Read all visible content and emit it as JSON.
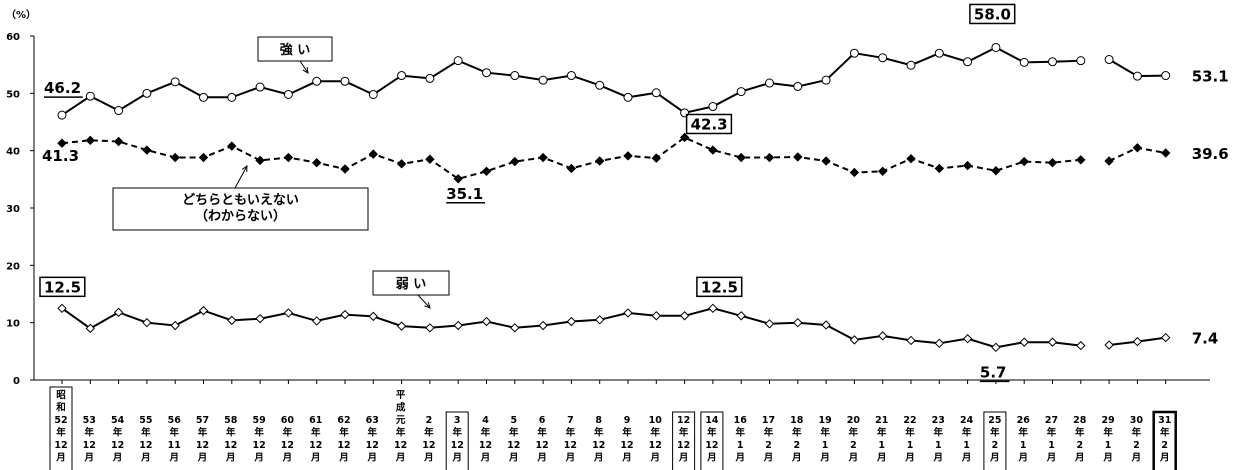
{
  "chart_data": {
    "type": "line",
    "yunit": "（%）",
    "ylim": [
      0,
      60
    ],
    "yticks": [
      "60",
      "50",
      "40",
      "30",
      "20",
      "10",
      "0"
    ],
    "categories": [
      [
        "昭",
        "和",
        "52",
        "年",
        "12",
        "月"
      ],
      [
        "53",
        "年",
        "12",
        "月"
      ],
      [
        "54",
        "年",
        "12",
        "月"
      ],
      [
        "55",
        "年",
        "12",
        "月"
      ],
      [
        "56",
        "年",
        "11",
        "月"
      ],
      [
        "57",
        "年",
        "12",
        "月"
      ],
      [
        "58",
        "年",
        "12",
        "月"
      ],
      [
        "59",
        "年",
        "12",
        "月"
      ],
      [
        "60",
        "年",
        "12",
        "月"
      ],
      [
        "61",
        "年",
        "12",
        "月"
      ],
      [
        "62",
        "年",
        "12",
        "月"
      ],
      [
        "63",
        "年",
        "12",
        "月"
      ],
      [
        "平",
        "成",
        "元",
        "年",
        "12",
        "月"
      ],
      [
        "2",
        "年",
        "12",
        "月"
      ],
      [
        "3",
        "年",
        "12",
        "月"
      ],
      [
        "4",
        "年",
        "12",
        "月"
      ],
      [
        "5",
        "年",
        "12",
        "月"
      ],
      [
        "6",
        "年",
        "12",
        "月"
      ],
      [
        "7",
        "年",
        "12",
        "月"
      ],
      [
        "8",
        "年",
        "12",
        "月"
      ],
      [
        "9",
        "年",
        "12",
        "月"
      ],
      [
        "10",
        "年",
        "12",
        "月"
      ],
      [
        "12",
        "年",
        "12",
        "月"
      ],
      [
        "14",
        "年",
        "12",
        "月"
      ],
      [
        "16",
        "年",
        "1",
        "月"
      ],
      [
        "17",
        "年",
        "2",
        "月"
      ],
      [
        "18",
        "年",
        "2",
        "月"
      ],
      [
        "19",
        "年",
        "1",
        "月"
      ],
      [
        "20",
        "年",
        "2",
        "月"
      ],
      [
        "21",
        "年",
        "1",
        "月"
      ],
      [
        "22",
        "年",
        "1",
        "月"
      ],
      [
        "23",
        "年",
        "1",
        "月"
      ],
      [
        "24",
        "年",
        "1",
        "月"
      ],
      [
        "25",
        "年",
        "2",
        "月"
      ],
      [
        "26",
        "年",
        "1",
        "月"
      ],
      [
        "27",
        "年",
        "1",
        "月"
      ],
      [
        "28",
        "年",
        "2",
        "月"
      ],
      [
        "29",
        "年",
        "1",
        "月"
      ],
      [
        "30",
        "年",
        "2",
        "月"
      ],
      [
        "31",
        "年",
        "2",
        "月"
      ]
    ],
    "boxed_categories": [
      14,
      22,
      23,
      33
    ],
    "bold_box_category": 39,
    "gaps_after_index": [
      36
    ],
    "series": [
      {
        "name": "強 い",
        "style": "solid-open-circle",
        "values": [
          46.2,
          49.5,
          47.0,
          50.0,
          52.0,
          49.3,
          49.3,
          51.1,
          49.8,
          52.1,
          52.1,
          49.8,
          53.1,
          52.6,
          55.7,
          53.6,
          53.1,
          52.3,
          53.1,
          51.4,
          49.3,
          50.1,
          46.6,
          47.7,
          50.3,
          51.8,
          51.2,
          52.3,
          57.0,
          56.2,
          54.9,
          57.0,
          55.5,
          58.0,
          55.4,
          55.5,
          55.7,
          55.9,
          53.0,
          53.1
        ]
      },
      {
        "name": "どちらともいえない（わからない）",
        "style": "dashed-filled-diamond",
        "values": [
          41.3,
          41.8,
          41.6,
          40.1,
          38.8,
          38.8,
          40.8,
          38.3,
          38.8,
          37.9,
          36.8,
          39.4,
          37.7,
          38.5,
          35.1,
          36.4,
          38.1,
          38.8,
          36.9,
          38.2,
          39.1,
          38.7,
          42.3,
          40.1,
          38.8,
          38.8,
          38.9,
          38.2,
          36.2,
          36.4,
          38.6,
          36.9,
          37.4,
          36.5,
          38.1,
          37.9,
          38.4,
          38.2,
          40.5,
          39.6
        ]
      },
      {
        "name": "弱 い",
        "style": "solid-open-diamond",
        "values": [
          12.5,
          9.0,
          11.8,
          10.0,
          9.5,
          12.1,
          10.4,
          10.7,
          11.7,
          10.3,
          11.4,
          11.1,
          9.4,
          9.1,
          9.5,
          10.2,
          9.1,
          9.5,
          10.2,
          10.5,
          11.7,
          11.2,
          11.2,
          12.5,
          11.2,
          9.8,
          10.0,
          9.6,
          7.0,
          7.7,
          6.9,
          6.4,
          7.2,
          5.7,
          6.6,
          6.6,
          6.0,
          6.1,
          6.7,
          7.4
        ]
      }
    ],
    "annotations": [
      {
        "text": "46.2",
        "series": 0,
        "index": 0,
        "style": "underline"
      },
      {
        "text": "53.1",
        "series": 0,
        "index": 39,
        "style": "plain-right"
      },
      {
        "text": "58.0",
        "series": 0,
        "index": 33,
        "style": "box"
      },
      {
        "text": "41.3",
        "series": 1,
        "index": 0,
        "style": "plain"
      },
      {
        "text": "35.1",
        "series": 1,
        "index": 14,
        "style": "underline"
      },
      {
        "text": "42.3",
        "series": 1,
        "index": 22,
        "style": "box"
      },
      {
        "text": "39.6",
        "series": 1,
        "index": 39,
        "style": "plain-right"
      },
      {
        "text": "12.5",
        "series": 2,
        "index": 0,
        "style": "box"
      },
      {
        "text": "12.5",
        "series": 2,
        "index": 23,
        "style": "box"
      },
      {
        "text": "5.7",
        "series": 2,
        "index": 33,
        "style": "underline"
      },
      {
        "text": "7.4",
        "series": 2,
        "index": 39,
        "style": "plain-right"
      }
    ],
    "callouts": [
      {
        "lines": [
          "強 い"
        ],
        "series": 0
      },
      {
        "lines": [
          "どちらともいえない",
          "（わからない）"
        ],
        "series": 1
      },
      {
        "lines": [
          "弱 い"
        ],
        "series": 2
      }
    ]
  }
}
